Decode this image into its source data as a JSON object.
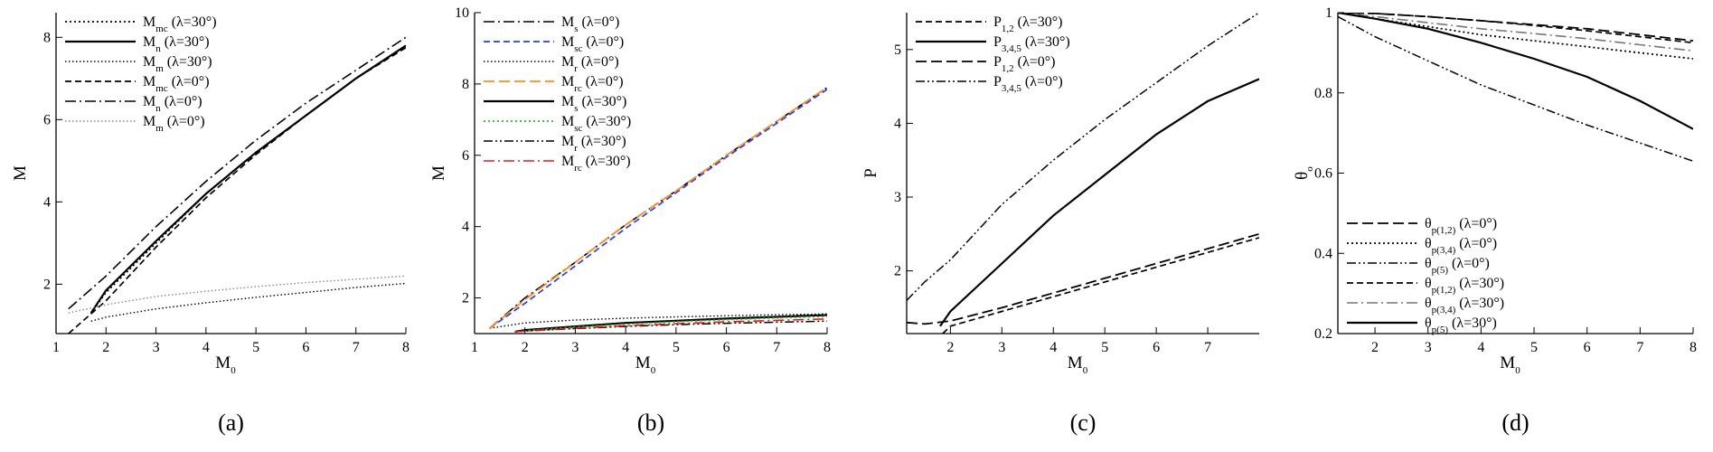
{
  "colors": {
    "black": "#000000",
    "gray": "#666666",
    "blue": "#1f3fff",
    "orange": "#ff8c1a",
    "green": "#22bb22",
    "red": "#e31a1a"
  },
  "chart_data": [
    {
      "panel_label": "(a)",
      "type": "line",
      "xlabel_main": "M",
      "xlabel_sub": "0",
      "ylabel_main": "M",
      "ylabel_sub": "",
      "xlim": [
        1,
        8
      ],
      "ylim": [
        0.8,
        8.6
      ],
      "xticks": [
        1,
        2,
        3,
        4,
        5,
        6,
        7,
        8
      ],
      "yticks": [
        2,
        4,
        6,
        8
      ],
      "legend_position": "top-left",
      "series": [
        {
          "name_main": "M",
          "name_sub": "mc",
          "name_rest": " (λ=30°)",
          "style": "dotted",
          "color": "#000000",
          "x": [
            1.7,
            2,
            3,
            4,
            5,
            6,
            7,
            8
          ],
          "y": [
            1.3,
            1.8,
            3.0,
            4.2,
            5.2,
            6.1,
            7.0,
            7.8
          ]
        },
        {
          "name_main": "M",
          "name_sub": "n",
          "name_rest": " (λ=30°)",
          "style": "solid",
          "color": "#000000",
          "x": [
            1.7,
            2,
            3,
            4,
            5,
            6,
            7,
            8
          ],
          "y": [
            1.3,
            1.85,
            3.05,
            4.2,
            5.2,
            6.1,
            7.0,
            7.8
          ]
        },
        {
          "name_main": "M",
          "name_sub": "m",
          "name_rest": " (λ=30°)",
          "style": "dotted-fine",
          "color": "#000000",
          "x": [
            1.7,
            2,
            3,
            4,
            5,
            6,
            7,
            8
          ],
          "y": [
            1.1,
            1.2,
            1.4,
            1.55,
            1.68,
            1.8,
            1.92,
            2.02
          ]
        },
        {
          "name_main": "M",
          "name_sub": "mc",
          "name_rest": " (λ=0°)",
          "style": "dashed",
          "color": "#000000",
          "x": [
            1.25,
            2,
            3,
            4,
            5,
            6,
            7,
            8
          ],
          "y": [
            0.8,
            1.6,
            2.9,
            4.1,
            5.15,
            6.1,
            7.0,
            7.75
          ]
        },
        {
          "name_main": "M",
          "name_sub": "n",
          "name_rest": " (λ=0°)",
          "style": "dashdot",
          "color": "#000000",
          "x": [
            1.25,
            2,
            3,
            4,
            5,
            6,
            7,
            8
          ],
          "y": [
            1.4,
            2.2,
            3.4,
            4.5,
            5.5,
            6.4,
            7.2,
            8.0
          ]
        },
        {
          "name_main": "M",
          "name_sub": "m",
          "name_rest": " (λ=0°)",
          "style": "dotted-fine",
          "color": "#888888",
          "x": [
            1.25,
            2,
            3,
            4,
            5,
            6,
            7,
            8
          ],
          "y": [
            1.3,
            1.5,
            1.7,
            1.83,
            1.94,
            2.04,
            2.12,
            2.2
          ]
        }
      ]
    },
    {
      "panel_label": "(b)",
      "type": "line",
      "xlabel_main": "M",
      "xlabel_sub": "0",
      "ylabel_main": "M",
      "ylabel_sub": "",
      "xlim": [
        1,
        8
      ],
      "ylim": [
        1,
        10
      ],
      "xticks": [
        1,
        2,
        3,
        4,
        5,
        6,
        7,
        8
      ],
      "yticks": [
        2,
        4,
        6,
        8,
        10
      ],
      "legend_position": "top-left",
      "series": [
        {
          "name_main": "M",
          "name_sub": "s",
          "name_rest": " (λ=0°)",
          "style": "dashdot",
          "color": "#000000",
          "x": [
            1.3,
            2,
            3,
            4,
            5,
            6,
            7,
            8
          ],
          "y": [
            1.15,
            2.0,
            3.0,
            4.05,
            5.0,
            6.0,
            6.95,
            7.9
          ]
        },
        {
          "name_main": "M",
          "name_sub": "sc",
          "name_rest": " (λ=0°)",
          "style": "dashed",
          "color": "#1f3fff",
          "x": [
            1.3,
            2,
            3,
            4,
            5,
            6,
            7,
            8
          ],
          "y": [
            1.15,
            1.85,
            2.9,
            3.95,
            4.95,
            5.95,
            6.9,
            7.85
          ]
        },
        {
          "name_main": "M",
          "name_sub": "r",
          "name_rest": " (λ=0°)",
          "style": "dotted-fine",
          "color": "#000000",
          "x": [
            1.3,
            2,
            3,
            4,
            5,
            6,
            7,
            8
          ],
          "y": [
            1.15,
            1.3,
            1.38,
            1.43,
            1.47,
            1.5,
            1.53,
            1.55
          ]
        },
        {
          "name_main": "M",
          "name_sub": "rc",
          "name_rest": " (λ=0°)",
          "style": "longdash",
          "color": "#ff8c1a",
          "x": [
            1.3,
            2,
            3,
            4,
            5,
            6,
            7,
            8
          ],
          "y": [
            1.15,
            1.95,
            3.0,
            4.05,
            5.0,
            6.0,
            6.95,
            7.9
          ]
        },
        {
          "name_main": "M",
          "name_sub": "s",
          "name_rest": " (λ=30°)",
          "style": "solid",
          "color": "#000000",
          "x": [
            1.8,
            2,
            3,
            4,
            5,
            6,
            7,
            8
          ],
          "y": [
            1.05,
            1.1,
            1.2,
            1.3,
            1.36,
            1.42,
            1.47,
            1.52
          ]
        },
        {
          "name_main": "M",
          "name_sub": "sc",
          "name_rest": " (λ=30°)",
          "style": "dotted",
          "color": "#22bb22",
          "x": [
            1.8,
            2,
            3,
            4,
            5,
            6,
            7,
            8
          ],
          "y": [
            1.05,
            1.08,
            1.18,
            1.26,
            1.33,
            1.39,
            1.44,
            1.48
          ]
        },
        {
          "name_main": "M",
          "name_sub": "r",
          "name_rest": " (λ=30°)",
          "style": "dashdotdot",
          "color": "#000000",
          "x": [
            1.8,
            2,
            3,
            4,
            5,
            6,
            7,
            8
          ],
          "y": [
            1.05,
            1.07,
            1.14,
            1.2,
            1.25,
            1.29,
            1.32,
            1.35
          ]
        },
        {
          "name_main": "M",
          "name_sub": "rc",
          "name_rest": " (λ=30°)",
          "style": "dashdot",
          "color": "#e31a1a",
          "x": [
            1.8,
            2,
            3,
            4,
            5,
            6,
            7,
            8
          ],
          "y": [
            1.05,
            1.07,
            1.15,
            1.22,
            1.28,
            1.33,
            1.37,
            1.41
          ]
        }
      ]
    },
    {
      "panel_label": "(c)",
      "type": "line",
      "xlabel_main": "M",
      "xlabel_sub": "0",
      "ylabel_main": "P",
      "ylabel_sub": "",
      "xlim": [
        1.15,
        8
      ],
      "ylim": [
        1.15,
        5.5
      ],
      "xticks": [
        2,
        3,
        4,
        5,
        6,
        7
      ],
      "yticks": [
        2,
        3,
        4,
        5
      ],
      "legend_position": "top-left",
      "series": [
        {
          "name_main": "P",
          "name_sub": "1,2",
          "name_rest": " (λ=30°)",
          "style": "dashed",
          "color": "#000000",
          "x": [
            1.85,
            2,
            3,
            4,
            5,
            6,
            7,
            8
          ],
          "y": [
            1.15,
            1.25,
            1.45,
            1.65,
            1.85,
            2.05,
            2.25,
            2.45
          ]
        },
        {
          "name_main": "P",
          "name_sub": "3,4,5",
          "name_rest": " (λ=30°)",
          "style": "solid",
          "color": "#000000",
          "x": [
            1.8,
            2,
            3,
            4,
            5,
            6,
            7,
            8
          ],
          "y": [
            1.25,
            1.45,
            2.1,
            2.75,
            3.3,
            3.85,
            4.3,
            4.6
          ]
        },
        {
          "name_main": "P",
          "name_sub": "1,2",
          "name_rest": " (λ=0°)",
          "style": "longdash",
          "color": "#000000",
          "x": [
            1.15,
            1.5,
            2,
            3,
            4,
            5,
            6,
            7,
            8
          ],
          "y": [
            1.3,
            1.28,
            1.32,
            1.5,
            1.7,
            1.9,
            2.1,
            2.3,
            2.5
          ]
        },
        {
          "name_main": "P",
          "name_sub": "3,4,5",
          "name_rest": " (λ=0°)",
          "style": "dashdotdot",
          "color": "#000000",
          "x": [
            1.15,
            1.5,
            2,
            3,
            4,
            5,
            6,
            7,
            8
          ],
          "y": [
            1.6,
            1.85,
            2.15,
            2.9,
            3.5,
            4.05,
            4.55,
            5.05,
            5.5
          ]
        }
      ]
    },
    {
      "panel_label": "(d)",
      "type": "line",
      "xlabel_main": "M",
      "xlabel_sub": "0",
      "ylabel_main": "θ",
      "ylabel_sub": "o",
      "xlim": [
        1.3,
        8
      ],
      "ylim": [
        0.2,
        1.0
      ],
      "xticks": [
        2,
        3,
        4,
        5,
        6,
        7,
        8
      ],
      "yticks": [
        0.2,
        0.4,
        0.6,
        0.8,
        1
      ],
      "ytick_labels": [
        "0.2",
        "0.4",
        "0.6",
        "0.8",
        "1"
      ],
      "legend_position": "bottom-left",
      "series": [
        {
          "name_main": "θ",
          "name_sub": "p(1,2)",
          "name_rest": " (λ=0°)",
          "style": "longdash",
          "color": "#000000",
          "x": [
            1.3,
            2,
            3,
            4,
            5,
            6,
            7,
            8
          ],
          "y": [
            1.0,
            0.998,
            0.99,
            0.98,
            0.97,
            0.96,
            0.945,
            0.93
          ]
        },
        {
          "name_main": "θ",
          "name_sub": "p(3,4)",
          "name_rest": " (λ=0°)",
          "style": "dotted",
          "color": "#000000",
          "x": [
            1.3,
            2,
            3,
            4,
            5,
            6,
            7,
            8
          ],
          "y": [
            1.0,
            0.985,
            0.965,
            0.945,
            0.93,
            0.915,
            0.9,
            0.885
          ]
        },
        {
          "name_main": "θ",
          "name_sub": "p(5)",
          "name_rest": " (λ=0°)",
          "style": "dashdotdot",
          "color": "#000000",
          "x": [
            1.3,
            2,
            3,
            4,
            5,
            6,
            7,
            8
          ],
          "y": [
            0.99,
            0.94,
            0.88,
            0.82,
            0.77,
            0.72,
            0.675,
            0.63
          ]
        },
        {
          "name_main": "θ",
          "name_sub": "p(1,2)",
          "name_rest": " (λ=30°)",
          "style": "dashed",
          "color": "#000000",
          "x": [
            1.3,
            2,
            3,
            4,
            5,
            6,
            7,
            8
          ],
          "y": [
            1.0,
            0.998,
            0.99,
            0.98,
            0.968,
            0.955,
            0.94,
            0.925
          ]
        },
        {
          "name_main": "θ",
          "name_sub": "p(3,4)",
          "name_rest": " (λ=30°)",
          "style": "dashdot",
          "color": "#777777",
          "x": [
            1.3,
            2,
            3,
            4,
            5,
            6,
            7,
            8
          ],
          "y": [
            1.0,
            0.99,
            0.975,
            0.96,
            0.948,
            0.935,
            0.92,
            0.905
          ]
        },
        {
          "name_main": "θ",
          "name_sub": "p(5)",
          "name_rest": " (λ=30°)",
          "style": "solid",
          "color": "#000000",
          "x": [
            1.3,
            2,
            3,
            4,
            5,
            6,
            7,
            8
          ],
          "y": [
            1.0,
            0.985,
            0.96,
            0.925,
            0.885,
            0.84,
            0.78,
            0.71
          ]
        }
      ]
    }
  ]
}
